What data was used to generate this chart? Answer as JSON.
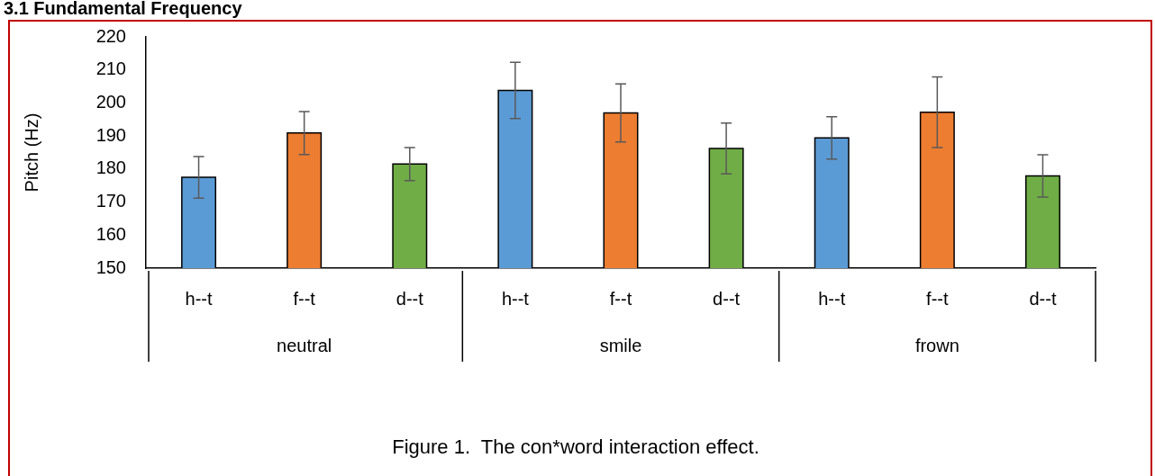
{
  "chart_data": {
    "type": "bar",
    "title": "3.1 Fundamental Frequency",
    "ylabel": "Pitch (Hz)",
    "categories": [
      "neutral",
      "smile",
      "frown"
    ],
    "series": [
      {
        "name": "h--t",
        "color": "#5b9bd5",
        "values": [
          177.5,
          203.8,
          189.4
        ],
        "errors": [
          6.3,
          8.5,
          6.4
        ]
      },
      {
        "name": "f--t",
        "color": "#ed7d31",
        "values": [
          190.9,
          197.0,
          197.2
        ],
        "errors": [
          6.5,
          8.8,
          10.7
        ]
      },
      {
        "name": "d--t",
        "color": "#70ad47",
        "values": [
          181.5,
          186.2,
          177.9
        ],
        "errors": [
          5.0,
          7.7,
          6.4
        ]
      }
    ],
    "ylim": [
      150,
      220
    ],
    "yticks": [
      150,
      160,
      170,
      180,
      190,
      200,
      210,
      220
    ],
    "grid": false,
    "legend": false,
    "annotations": [
      "Figure 1.  The con*word interaction effect."
    ]
  }
}
